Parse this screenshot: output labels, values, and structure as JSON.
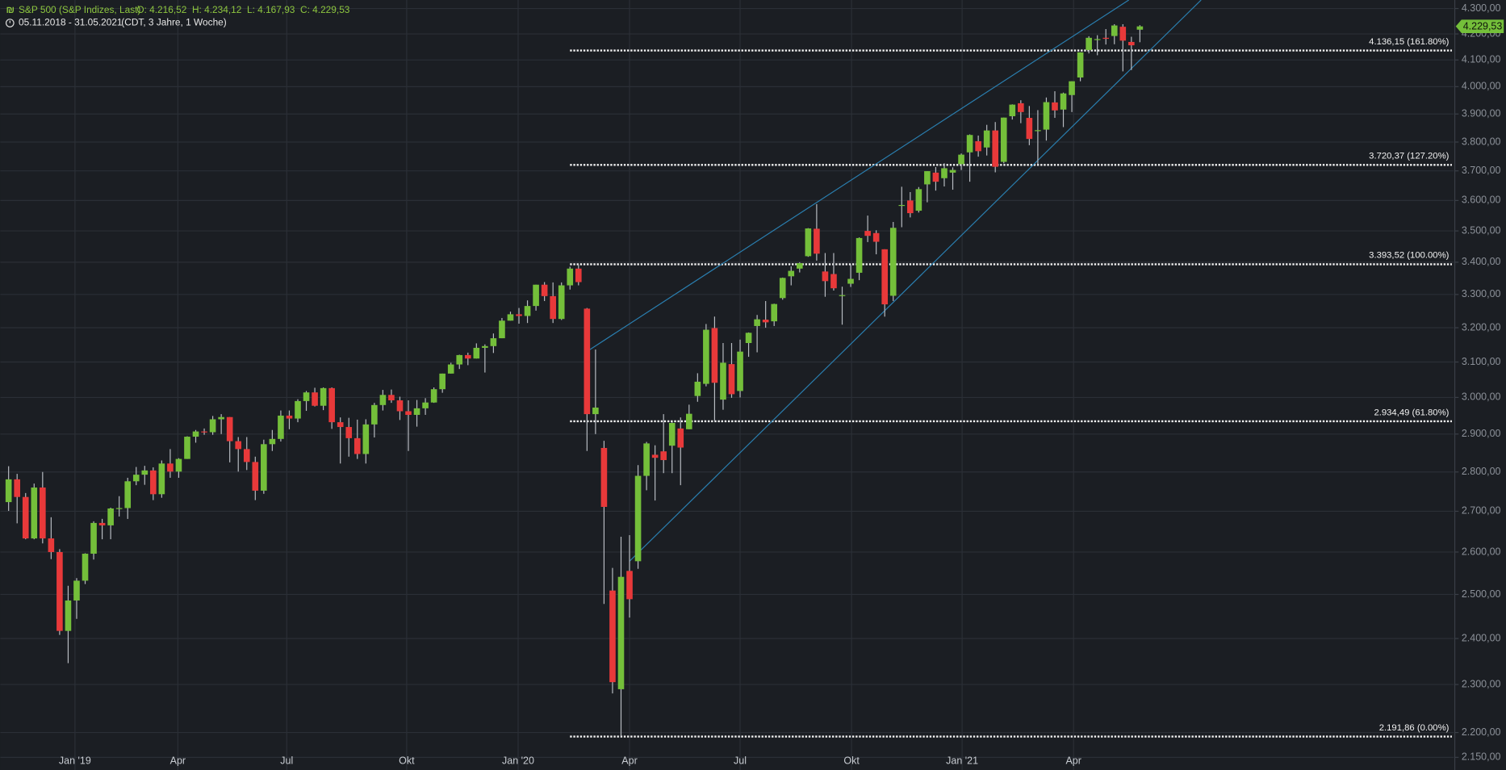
{
  "chart_data": {
    "type": "candlestick",
    "title": "S&P 500 (S&P Indizes, Last)",
    "quote": "O: 4.216,52  H: 4.234,12  L: 4.167,93  C: 4.229,53",
    "range": "05.11.2018 - 31.05.2021",
    "range_info": "(CDT, 3 Jahre, 1 Woche)",
    "last_label": "4.229,53",
    "log_scale": true,
    "grid": true,
    "up_color": "#74bf3a",
    "down_color": "#e8393a",
    "line_color": "#2a7fb0",
    "ylim": [
      2125,
      4334
    ],
    "yticks": [
      {
        "value": 2150,
        "label": "2.150,00"
      },
      {
        "value": 2200,
        "label": "2.200,00"
      },
      {
        "value": 2300,
        "label": "2.300,00"
      },
      {
        "value": 2400,
        "label": "2.400,00"
      },
      {
        "value": 2500,
        "label": "2.500,00"
      },
      {
        "value": 2600,
        "label": "2.600,00"
      },
      {
        "value": 2700,
        "label": "2.700,00"
      },
      {
        "value": 2800,
        "label": "2.800,00"
      },
      {
        "value": 2900,
        "label": "2.900,00"
      },
      {
        "value": 3000,
        "label": "3.000,00"
      },
      {
        "value": 3100,
        "label": "3.100,00"
      },
      {
        "value": 3200,
        "label": "3.200,00"
      },
      {
        "value": 3300,
        "label": "3.300,00"
      },
      {
        "value": 3400,
        "label": "3.400,00"
      },
      {
        "value": 3500,
        "label": "3.500,00"
      },
      {
        "value": 3600,
        "label": "3.600,00"
      },
      {
        "value": 3700,
        "label": "3.700,00"
      },
      {
        "value": 3800,
        "label": "3.800,00"
      },
      {
        "value": 3900,
        "label": "3.900,00"
      },
      {
        "value": 4000,
        "label": "4.000,00"
      },
      {
        "value": 4100,
        "label": "4.100,00"
      },
      {
        "value": 4200,
        "label": "4.200,00"
      },
      {
        "value": 4300,
        "label": "4.300,00"
      }
    ],
    "xlim": [
      -1,
      170
    ],
    "xticks": [
      {
        "value": 7.8,
        "label": "Jan '19"
      },
      {
        "value": 19.9,
        "label": "Apr"
      },
      {
        "value": 32.7,
        "label": "Jul"
      },
      {
        "value": 46.8,
        "label": "Okt"
      },
      {
        "value": 59.9,
        "label": "Jan '20"
      },
      {
        "value": 73,
        "label": "Apr"
      },
      {
        "value": 86,
        "label": "Jul"
      },
      {
        "value": 99.1,
        "label": "Okt"
      },
      {
        "value": 112.1,
        "label": "Jan '21"
      },
      {
        "value": 125.2,
        "label": "Apr"
      }
    ],
    "fib_from": 66,
    "fib_levels": [
      {
        "value": 4136.15,
        "label": "4.136,15 (161.80%)"
      },
      {
        "value": 3720.37,
        "label": "3.720,37 (127.20%)"
      },
      {
        "value": 3393.52,
        "label": "3.393,52 (100.00%)"
      },
      {
        "value": 2934.49,
        "label": "2.934,49 (61.80%)"
      },
      {
        "value": 2191.86,
        "label": "2.191,86 (0.00%)"
      }
    ],
    "trendlines": [
      {
        "from": [
          67.9,
          3129
        ],
        "to": [
          131.7,
          4334
        ]
      },
      {
        "from": [
          73,
          2578
        ],
        "to": [
          140.2,
          4334
        ]
      }
    ],
    "candles": [
      [
        2723,
        2815,
        2701,
        2781
      ],
      [
        2781,
        2795,
        2670,
        2736
      ],
      [
        2736,
        2746,
        2631,
        2633
      ],
      [
        2633,
        2770,
        2631,
        2760
      ],
      [
        2760,
        2800,
        2621,
        2633
      ],
      [
        2633,
        2685,
        2583,
        2600
      ],
      [
        2600,
        2607,
        2408,
        2417
      ],
      [
        2417,
        2520,
        2346,
        2486
      ],
      [
        2486,
        2538,
        2444,
        2532
      ],
      [
        2532,
        2597,
        2524,
        2596
      ],
      [
        2596,
        2675,
        2582,
        2671
      ],
      [
        2671,
        2681,
        2631,
        2665
      ],
      [
        2665,
        2709,
        2631,
        2707
      ],
      [
        2707,
        2738,
        2687,
        2708
      ],
      [
        2708,
        2785,
        2681,
        2776
      ],
      [
        2776,
        2813,
        2766,
        2793
      ],
      [
        2793,
        2816,
        2767,
        2804
      ],
      [
        2804,
        2812,
        2728,
        2743
      ],
      [
        2743,
        2830,
        2734,
        2822
      ],
      [
        2822,
        2860,
        2785,
        2801
      ],
      [
        2801,
        2836,
        2785,
        2834
      ],
      [
        2834,
        2894,
        2834,
        2893
      ],
      [
        2893,
        2911,
        2877,
        2907
      ],
      [
        2907,
        2915,
        2898,
        2905
      ],
      [
        2905,
        2949,
        2898,
        2940
      ],
      [
        2940,
        2954,
        2900,
        2946
      ],
      [
        2946,
        2946,
        2825,
        2881
      ],
      [
        2881,
        2892,
        2801,
        2860
      ],
      [
        2860,
        2892,
        2805,
        2826
      ],
      [
        2826,
        2840,
        2728,
        2752
      ],
      [
        2752,
        2885,
        2744,
        2873
      ],
      [
        2873,
        2911,
        2855,
        2887
      ],
      [
        2887,
        2964,
        2880,
        2950
      ],
      [
        2950,
        2964,
        2913,
        2942
      ],
      [
        2942,
        2995,
        2932,
        2990
      ],
      [
        2990,
        3018,
        2963,
        3014
      ],
      [
        3014,
        3027,
        2975,
        2977
      ],
      [
        2977,
        3028,
        2965,
        3026
      ],
      [
        3026,
        3028,
        2914,
        2932
      ],
      [
        2932,
        2945,
        2822,
        2919
      ],
      [
        2919,
        2944,
        2840,
        2889
      ],
      [
        2889,
        2939,
        2834,
        2847
      ],
      [
        2847,
        2940,
        2822,
        2926
      ],
      [
        2926,
        2985,
        2891,
        2979
      ],
      [
        2979,
        3021,
        2964,
        3007
      ],
      [
        3007,
        3022,
        2985,
        2992
      ],
      [
        2992,
        3002,
        2938,
        2962
      ],
      [
        2962,
        2992,
        2855,
        2952
      ],
      [
        2952,
        2993,
        2920,
        2970
      ],
      [
        2970,
        2998,
        2952,
        2986
      ],
      [
        2986,
        3028,
        2985,
        3023
      ],
      [
        3023,
        3067,
        3013,
        3067
      ],
      [
        3067,
        3098,
        3067,
        3093
      ],
      [
        3093,
        3121,
        3080,
        3120
      ],
      [
        3120,
        3127,
        3091,
        3110
      ],
      [
        3110,
        3154,
        3110,
        3141
      ],
      [
        3141,
        3151,
        3070,
        3146
      ],
      [
        3146,
        3183,
        3126,
        3169
      ],
      [
        3169,
        3229,
        3169,
        3221
      ],
      [
        3221,
        3248,
        3221,
        3240
      ],
      [
        3240,
        3259,
        3212,
        3235
      ],
      [
        3235,
        3282,
        3214,
        3265
      ],
      [
        3265,
        3330,
        3251,
        3330
      ],
      [
        3330,
        3338,
        3280,
        3295
      ],
      [
        3295,
        3337,
        3214,
        3226
      ],
      [
        3226,
        3337,
        3223,
        3328
      ],
      [
        3328,
        3386,
        3315,
        3380
      ],
      [
        3380,
        3393,
        3328,
        3338
      ],
      [
        3257,
        3259,
        2855,
        2954
      ],
      [
        2954,
        3136,
        2900,
        2972
      ],
      [
        2863,
        2882,
        2478,
        2711
      ],
      [
        2509,
        2562,
        2281,
        2305
      ],
      [
        2290,
        2637,
        2192,
        2541
      ],
      [
        2555,
        2641,
        2447,
        2489
      ],
      [
        2578,
        2818,
        2560,
        2790
      ],
      [
        2790,
        2879,
        2753,
        2875
      ],
      [
        2845,
        2870,
        2727,
        2837
      ],
      [
        2854,
        2954,
        2797,
        2831
      ],
      [
        2869,
        2932,
        2797,
        2930
      ],
      [
        2915,
        2945,
        2766,
        2864
      ],
      [
        2913,
        2980,
        2913,
        2955
      ],
      [
        3004,
        3068,
        2988,
        3044
      ],
      [
        3038,
        3211,
        3031,
        3194
      ],
      [
        3199,
        3233,
        2936,
        3041
      ],
      [
        2994,
        3155,
        2966,
        3098
      ],
      [
        3094,
        3155,
        2999,
        3009
      ],
      [
        3018,
        3165,
        3000,
        3130
      ],
      [
        3155,
        3186,
        3115,
        3185
      ],
      [
        3205,
        3238,
        3128,
        3225
      ],
      [
        3224,
        3280,
        3200,
        3216
      ],
      [
        3219,
        3272,
        3205,
        3271
      ],
      [
        3289,
        3352,
        3284,
        3351
      ],
      [
        3356,
        3387,
        3328,
        3373
      ],
      [
        3380,
        3400,
        3368,
        3397
      ],
      [
        3419,
        3509,
        3417,
        3508
      ],
      [
        3507,
        3588,
        3405,
        3427
      ],
      [
        3371,
        3429,
        3293,
        3341
      ],
      [
        3363,
        3429,
        3312,
        3319
      ],
      [
        3296,
        3324,
        3209,
        3298
      ],
      [
        3333,
        3393,
        3323,
        3348
      ],
      [
        3367,
        3479,
        3344,
        3477
      ],
      [
        3500,
        3550,
        3464,
        3484
      ],
      [
        3493,
        3502,
        3425,
        3465
      ],
      [
        3441,
        3441,
        3233,
        3270
      ],
      [
        3296,
        3529,
        3280,
        3510
      ],
      [
        3583,
        3646,
        3512,
        3585
      ],
      [
        3600,
        3628,
        3544,
        3558
      ],
      [
        3566,
        3645,
        3560,
        3638
      ],
      [
        3654,
        3699,
        3594,
        3699
      ],
      [
        3694,
        3713,
        3633,
        3663
      ],
      [
        3675,
        3726,
        3647,
        3709
      ],
      [
        3694,
        3712,
        3636,
        3703
      ],
      [
        3723,
        3760,
        3703,
        3756
      ],
      [
        3764,
        3827,
        3663,
        3825
      ],
      [
        3803,
        3823,
        3749,
        3768
      ],
      [
        3781,
        3861,
        3753,
        3841
      ],
      [
        3841,
        3871,
        3695,
        3714
      ],
      [
        3731,
        3887,
        3726,
        3887
      ],
      [
        3892,
        3935,
        3880,
        3934
      ],
      [
        3939,
        3950,
        3867,
        3907
      ],
      [
        3886,
        3929,
        3789,
        3811
      ],
      [
        3842,
        3914,
        3723,
        3842
      ],
      [
        3844,
        3960,
        3805,
        3943
      ],
      [
        3942,
        3983,
        3886,
        3913
      ],
      [
        3916,
        3978,
        3853,
        3975
      ],
      [
        3969,
        4020,
        3907,
        4020
      ],
      [
        4034,
        4129,
        4020,
        4129
      ],
      [
        4138,
        4191,
        4125,
        4185
      ],
      [
        4179,
        4195,
        4118,
        4180
      ],
      [
        4185,
        4219,
        4159,
        4181
      ],
      [
        4192,
        4238,
        4160,
        4233
      ],
      [
        4228,
        4238,
        4057,
        4174
      ],
      [
        4169,
        4189,
        4062,
        4156
      ],
      [
        4216.52,
        4234.12,
        4167.93,
        4229.53
      ]
    ]
  }
}
